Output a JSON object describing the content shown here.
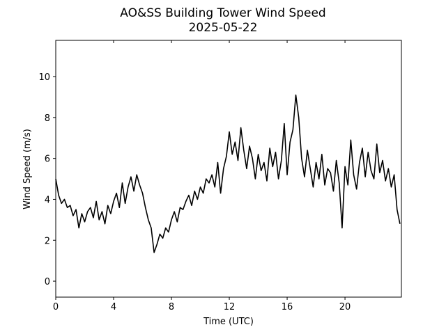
{
  "chart_data": {
    "type": "line",
    "title": "AO&SS Building Tower Wind Speed",
    "subtitle": "2025-05-22",
    "xlabel": "Time (UTC)",
    "ylabel": "Wind Speed (m/s)",
    "x": [
      0,
      0.2,
      0.4,
      0.6,
      0.8,
      1,
      1.2,
      1.4,
      1.6,
      1.8,
      2,
      2.2,
      2.4,
      2.6,
      2.8,
      3,
      3.2,
      3.4,
      3.6,
      3.8,
      4,
      4.2,
      4.4,
      4.6,
      4.8,
      5,
      5.2,
      5.4,
      5.6,
      5.8,
      6,
      6.2,
      6.4,
      6.6,
      6.8,
      7,
      7.2,
      7.4,
      7.6,
      7.8,
      8,
      8.2,
      8.4,
      8.6,
      8.8,
      9,
      9.2,
      9.4,
      9.6,
      9.8,
      10,
      10.2,
      10.4,
      10.6,
      10.8,
      11,
      11.2,
      11.4,
      11.6,
      11.8,
      12,
      12.2,
      12.4,
      12.6,
      12.8,
      13,
      13.2,
      13.4,
      13.6,
      13.8,
      14,
      14.2,
      14.4,
      14.6,
      14.8,
      15,
      15.2,
      15.4,
      15.6,
      15.8,
      16,
      16.2,
      16.4,
      16.6,
      16.8,
      17,
      17.2,
      17.4,
      17.6,
      17.8,
      18,
      18.2,
      18.4,
      18.6,
      18.8,
      19,
      19.2,
      19.4,
      19.6,
      19.8,
      20,
      20.2,
      20.4,
      20.6,
      20.8,
      21,
      21.2,
      21.4,
      21.6,
      21.8,
      22,
      22.2,
      22.4,
      22.6,
      22.8,
      23,
      23.2,
      23.4,
      23.6,
      23.8
    ],
    "series": [
      {
        "name": "Wind Speed",
        "color": "#000000",
        "values": [
          5.0,
          4.2,
          3.8,
          4.0,
          3.6,
          3.7,
          3.2,
          3.5,
          2.6,
          3.3,
          2.9,
          3.4,
          3.6,
          3.1,
          3.9,
          3.0,
          3.4,
          2.8,
          3.7,
          3.3,
          3.9,
          4.3,
          3.6,
          4.8,
          3.8,
          4.6,
          5.1,
          4.4,
          5.2,
          4.7,
          4.3,
          3.6,
          3.0,
          2.6,
          1.4,
          1.8,
          2.3,
          2.1,
          2.6,
          2.4,
          3.0,
          3.4,
          2.9,
          3.6,
          3.5,
          3.9,
          4.2,
          3.7,
          4.4,
          4.0,
          4.6,
          4.3,
          5.0,
          4.8,
          5.2,
          4.6,
          5.8,
          4.3,
          5.5,
          6.1,
          7.3,
          6.2,
          6.8,
          5.9,
          7.5,
          6.4,
          5.5,
          6.6,
          6.0,
          5.0,
          6.2,
          5.4,
          5.8,
          4.9,
          6.5,
          5.6,
          6.3,
          5.0,
          5.9,
          7.7,
          5.2,
          6.8,
          7.4,
          9.1,
          8.0,
          6.0,
          5.1,
          6.4,
          5.5,
          4.6,
          5.8,
          5.0,
          6.2,
          4.7,
          5.5,
          5.3,
          4.4,
          5.9,
          4.8,
          2.6,
          5.6,
          4.7,
          6.9,
          5.2,
          4.5,
          5.8,
          6.5,
          5.1,
          6.3,
          5.4,
          5.0,
          6.7,
          5.3,
          5.9,
          4.9,
          5.5,
          4.6,
          5.2,
          3.5,
          2.8
        ]
      }
    ],
    "xlim": [
      0,
      23.9
    ],
    "ylim": [
      -0.78,
      11.77
    ],
    "xticks": [
      0,
      4,
      8,
      12,
      16,
      20
    ],
    "yticks": [
      0,
      2,
      4,
      6,
      8,
      10
    ],
    "grid": false
  }
}
